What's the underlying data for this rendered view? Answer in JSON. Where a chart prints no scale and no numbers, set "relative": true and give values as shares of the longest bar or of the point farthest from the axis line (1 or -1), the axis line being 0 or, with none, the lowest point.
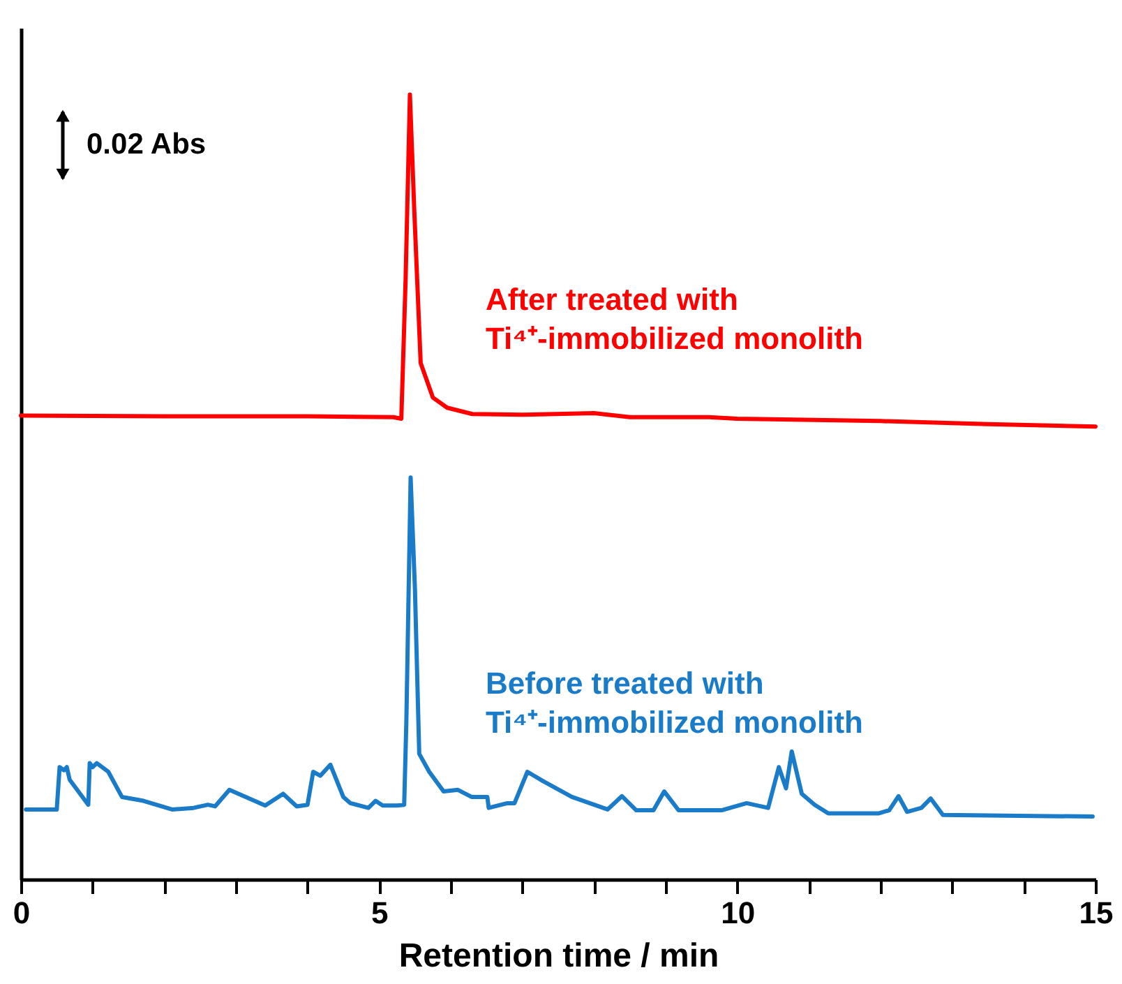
{
  "chart_data": {
    "type": "line",
    "relative": true,
    "xlabel": "Retention time / min",
    "xlim": [
      0,
      15
    ],
    "xticks": [
      0,
      {
        "value": 1,
        "label": null
      },
      {
        "value": 2,
        "label": null
      },
      {
        "value": 3,
        "label": null
      },
      {
        "value": 4,
        "label": null
      },
      5,
      {
        "value": 6,
        "label": null
      },
      {
        "value": 7,
        "label": null
      },
      {
        "value": 8,
        "label": null
      },
      {
        "value": 9,
        "label": null
      },
      10,
      {
        "value": 11,
        "label": null
      },
      {
        "value": 12,
        "label": null
      },
      {
        "value": 13,
        "label": null
      },
      {
        "value": 14,
        "label": null
      },
      15
    ],
    "annotations": [
      "0.02 Abs"
    ],
    "grid": false,
    "line_style": "solid",
    "marker": "none",
    "series": [
      {
        "name": "After treated with\nTi⁴⁺-immobilized monolith",
        "color": "#ff0000",
        "x": [
          0,
          2.0,
          4.0,
          5.2,
          5.31,
          5.37,
          5.43,
          5.49,
          5.58,
          5.75,
          5.95,
          6.3,
          7.0,
          8.0,
          8.5,
          9.6,
          10.0,
          12.0,
          13.5,
          15.0
        ],
        "values": [
          0.591,
          0.59,
          0.59,
          0.589,
          0.587,
          0.765,
          1.0,
          0.854,
          0.658,
          0.614,
          0.601,
          0.593,
          0.592,
          0.594,
          0.589,
          0.589,
          0.587,
          0.584,
          0.58,
          0.577
        ]
      },
      {
        "name": "Before treated with\nTi⁴⁺-immobilized monolith",
        "color": "#1a7cc9",
        "x": [
          0.07,
          0.5,
          0.54,
          0.6,
          0.64,
          0.68,
          0.94,
          0.96,
          1.0,
          1.06,
          1.22,
          1.41,
          1.71,
          2.11,
          2.41,
          2.61,
          2.71,
          2.91,
          3.41,
          3.66,
          3.85,
          4.0,
          4.08,
          4.18,
          4.32,
          4.5,
          4.6,
          4.85,
          4.95,
          5.05,
          5.25,
          5.35,
          5.38,
          5.44,
          5.5,
          5.56,
          5.7,
          5.9,
          6.1,
          6.29,
          6.51,
          6.53,
          6.79,
          6.89,
          7.07,
          7.29,
          7.69,
          8.19,
          8.39,
          8.59,
          8.83,
          8.98,
          9.18,
          9.78,
          10.13,
          10.43,
          10.58,
          10.68,
          10.76,
          10.9,
          11.08,
          11.27,
          11.97,
          12.12,
          12.25,
          12.37,
          12.57,
          12.7,
          12.87,
          14.96
        ],
        "values": [
          0.089,
          0.089,
          0.143,
          0.139,
          0.143,
          0.127,
          0.095,
          0.148,
          0.143,
          0.148,
          0.137,
          0.105,
          0.1,
          0.089,
          0.091,
          0.095,
          0.093,
          0.114,
          0.094,
          0.109,
          0.093,
          0.095,
          0.137,
          0.132,
          0.146,
          0.105,
          0.097,
          0.091,
          0.1,
          0.094,
          0.094,
          0.095,
          0.2,
          0.512,
          0.37,
          0.16,
          0.137,
          0.112,
          0.114,
          0.105,
          0.105,
          0.091,
          0.097,
          0.097,
          0.137,
          0.125,
          0.105,
          0.089,
          0.106,
          0.088,
          0.088,
          0.112,
          0.088,
          0.088,
          0.097,
          0.091,
          0.143,
          0.116,
          0.163,
          0.109,
          0.095,
          0.084,
          0.084,
          0.088,
          0.106,
          0.086,
          0.091,
          0.103,
          0.082,
          0.08
        ]
      }
    ]
  }
}
